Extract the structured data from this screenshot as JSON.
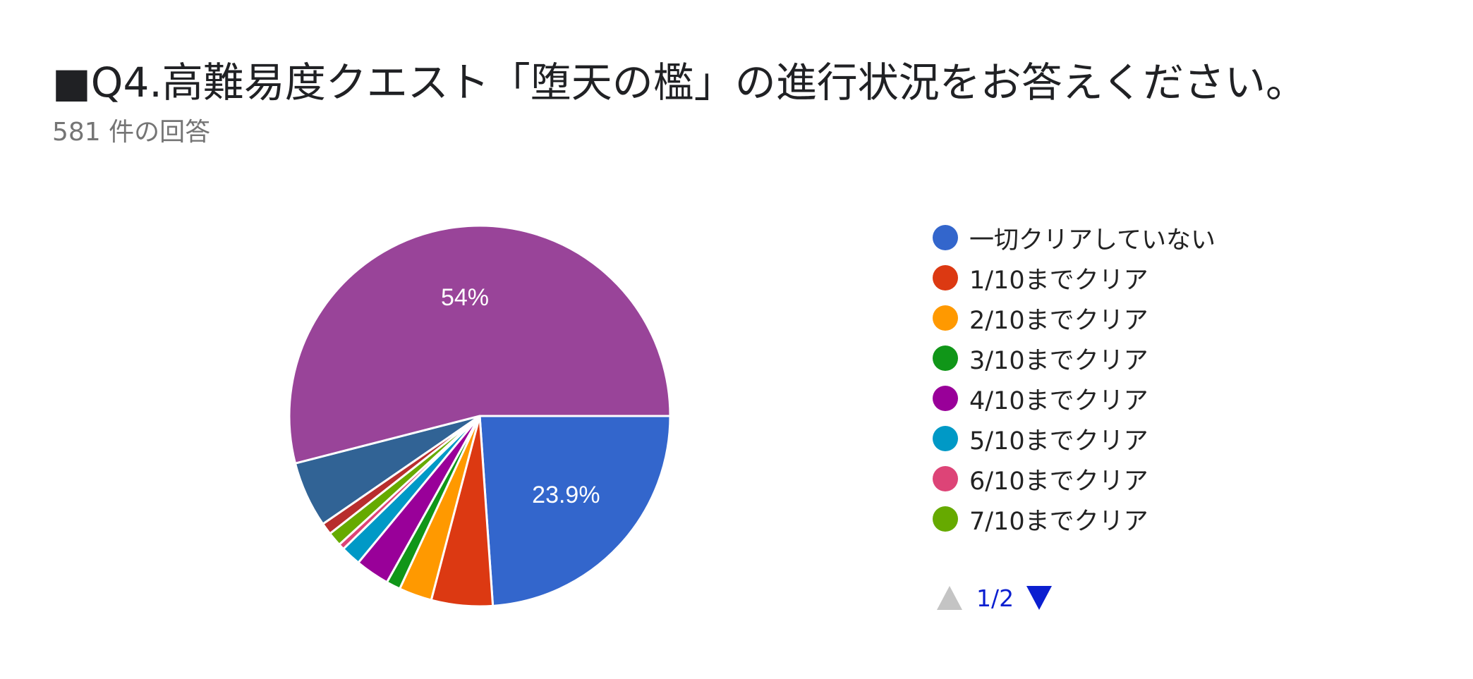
{
  "title": "■Q4.高難易度クエスト「堕天の檻」の進行状況をお答えください。",
  "subtitle": "581 件の回答",
  "chart_data": {
    "type": "pie",
    "title": "■Q4.高難易度クエスト「堕天の檻」の進行状況をお答えください。",
    "subtitle": "581 件の回答",
    "start_angle_deg": 90,
    "direction": "clockwise",
    "slices": [
      {
        "label": "一切クリアしていない",
        "value": 23.9,
        "color": "#3366cc",
        "data_label": "23.9%"
      },
      {
        "label": "1/10までクリア",
        "value": 5.2,
        "color": "#dc3912",
        "data_label": ""
      },
      {
        "label": "2/10までクリア",
        "value": 2.8,
        "color": "#ff9900",
        "data_label": ""
      },
      {
        "label": "3/10までクリア",
        "value": 1.2,
        "color": "#109618",
        "data_label": ""
      },
      {
        "label": "4/10までクリア",
        "value": 2.9,
        "color": "#990099",
        "data_label": ""
      },
      {
        "label": "5/10までクリア",
        "value": 1.7,
        "color": "#0099c6",
        "data_label": ""
      },
      {
        "label": "6/10までクリア",
        "value": 0.5,
        "color": "#dd4477",
        "data_label": ""
      },
      {
        "label": "7/10までクリア",
        "value": 1.2,
        "color": "#66aa00",
        "data_label": ""
      },
      {
        "label": "",
        "value": 1.0,
        "color": "#b82e2e",
        "data_label": ""
      },
      {
        "label": "",
        "value": 5.6,
        "color": "#316395",
        "data_label": ""
      },
      {
        "label": "",
        "value": 54.0,
        "color": "#994499",
        "data_label": "54%"
      }
    ]
  },
  "legend": {
    "items": [
      {
        "label": "一切クリアしていない",
        "color": "#3366cc"
      },
      {
        "label": "1/10までクリア",
        "color": "#dc3912"
      },
      {
        "label": "2/10までクリア",
        "color": "#ff9900"
      },
      {
        "label": "3/10までクリア",
        "color": "#109618"
      },
      {
        "label": "4/10までクリア",
        "color": "#990099"
      },
      {
        "label": "5/10までクリア",
        "color": "#0099c6"
      },
      {
        "label": "6/10までクリア",
        "color": "#dd4477"
      },
      {
        "label": "7/10までクリア",
        "color": "#66aa00"
      }
    ]
  },
  "pager": {
    "indicator": "1/2",
    "prev_icon": "triangle-up-icon",
    "next_icon": "triangle-down-icon",
    "prev_color": "#c4c4c4",
    "next_color": "#0b1fd0"
  }
}
